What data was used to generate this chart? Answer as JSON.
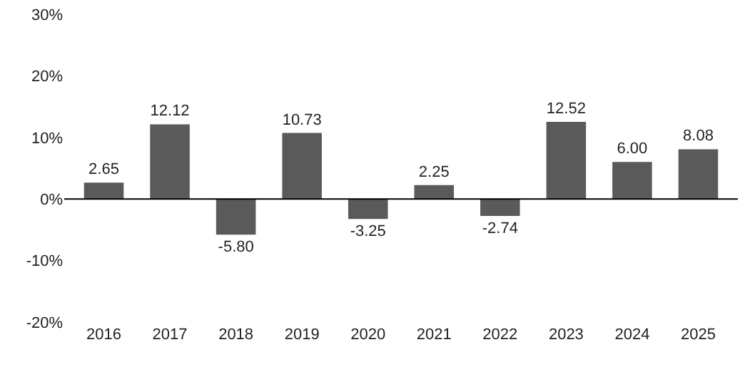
{
  "chart_data": {
    "type": "bar",
    "categories": [
      "2016",
      "2017",
      "2018",
      "2019",
      "2020",
      "2021",
      "2022",
      "2023",
      "2024",
      "2025"
    ],
    "values": [
      2.65,
      12.12,
      -5.8,
      10.73,
      -3.25,
      2.25,
      -2.74,
      12.52,
      6.0,
      8.08
    ],
    "value_labels": [
      "2.65",
      "12.12",
      "-5.80",
      "10.73",
      "-3.25",
      "2.25",
      "-2.74",
      "12.52",
      "6.00",
      "8.08"
    ],
    "color": "#5a5a5a",
    "ylim": [
      -20,
      30
    ],
    "ref_lines": [
      {
        "axis": "y",
        "value": 0,
        "color": "#000000"
      }
    ],
    "yticks": [
      {
        "value": -20,
        "label": "-20%"
      },
      {
        "value": -10,
        "label": "-10%"
      },
      {
        "value": 0,
        "label": "0%"
      },
      {
        "value": 10,
        "label": "10%"
      },
      {
        "value": 20,
        "label": "20%"
      },
      {
        "value": 30,
        "label": "30%"
      }
    ],
    "legend": false
  }
}
